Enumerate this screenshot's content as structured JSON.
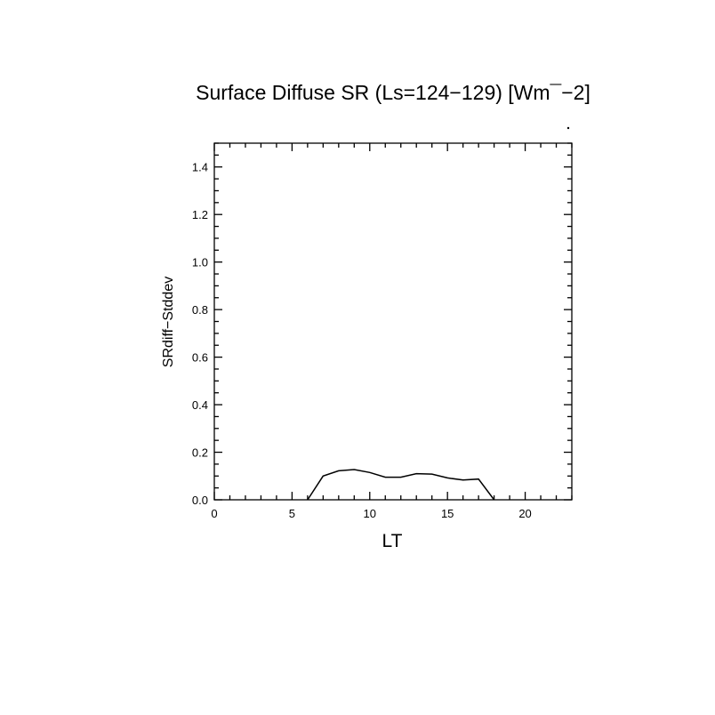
{
  "chart_data": {
    "type": "line",
    "title": "Surface Diffuse SR (Ls=124−129) [Wm¯−2]",
    "xlabel": "LT",
    "ylabel": "SRdiff−Stddev",
    "xlim": [
      0,
      23
    ],
    "ylim": [
      0,
      1.5
    ],
    "x_ticks": [
      0,
      5,
      10,
      15,
      20
    ],
    "y_ticks": [
      0.0,
      0.2,
      0.4,
      0.6,
      0.8,
      1.0,
      1.2,
      1.4
    ],
    "x_tick_labels": [
      "0",
      "5",
      "10",
      "15",
      "20"
    ],
    "y_tick_labels": [
      "0.0",
      "0.2",
      "0.4",
      "0.6",
      "0.8",
      "1.0",
      "1.2",
      "1.4"
    ],
    "grid": false,
    "series": [
      {
        "x": [
          6,
          7,
          8,
          9,
          10,
          11,
          12,
          13,
          14,
          15,
          16,
          17,
          18
        ],
        "values": [
          0.0,
          0.1,
          0.122,
          0.127,
          0.115,
          0.095,
          0.095,
          0.11,
          0.108,
          0.092,
          0.083,
          0.087,
          0.0
        ]
      }
    ]
  }
}
